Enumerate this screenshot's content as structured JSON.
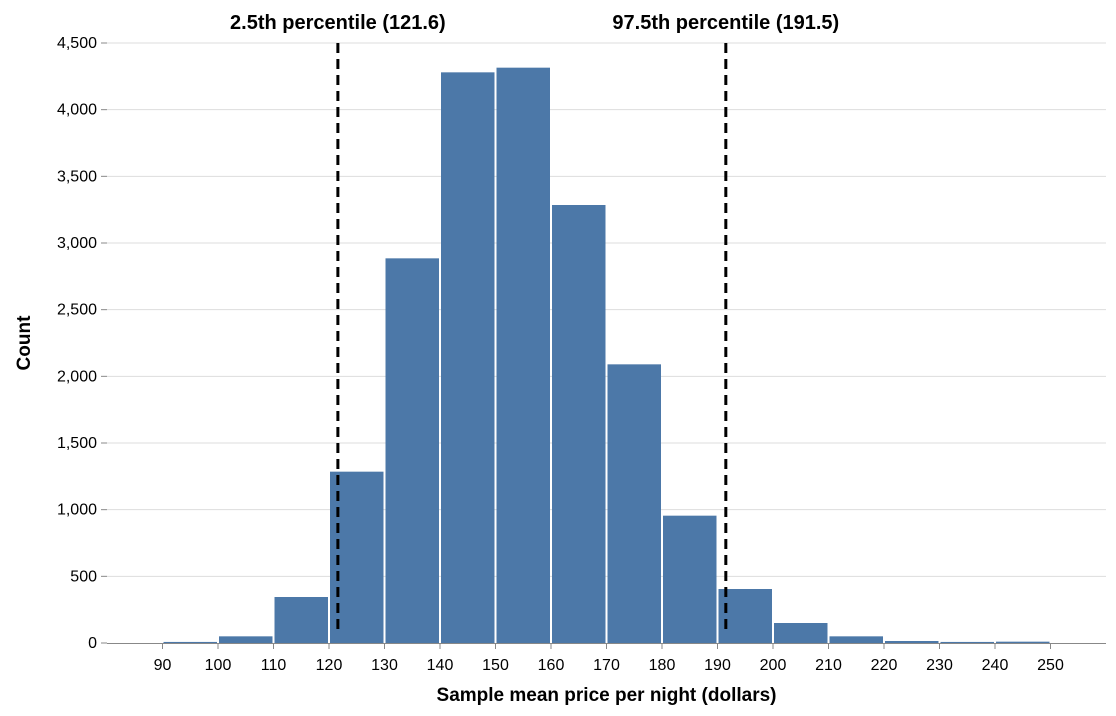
{
  "chart_data": {
    "type": "bar",
    "title": "",
    "xlabel": "Sample mean price per night (dollars)",
    "ylabel": "Count",
    "xlim": [
      80,
      260
    ],
    "ylim": [
      0,
      4500
    ],
    "grid": true,
    "bar_color": "#4c78a8",
    "bins": [
      {
        "x0": 90,
        "x1": 100,
        "count": 8
      },
      {
        "x0": 100,
        "x1": 110,
        "count": 50
      },
      {
        "x0": 110,
        "x1": 120,
        "count": 345
      },
      {
        "x0": 120,
        "x1": 130,
        "count": 1285
      },
      {
        "x0": 130,
        "x1": 140,
        "count": 2885
      },
      {
        "x0": 140,
        "x1": 150,
        "count": 4280
      },
      {
        "x0": 150,
        "x1": 160,
        "count": 4315
      },
      {
        "x0": 160,
        "x1": 170,
        "count": 3285
      },
      {
        "x0": 170,
        "x1": 180,
        "count": 2090
      },
      {
        "x0": 180,
        "x1": 190,
        "count": 955
      },
      {
        "x0": 190,
        "x1": 200,
        "count": 405
      },
      {
        "x0": 200,
        "x1": 210,
        "count": 150
      },
      {
        "x0": 210,
        "x1": 220,
        "count": 50
      },
      {
        "x0": 220,
        "x1": 230,
        "count": 15
      },
      {
        "x0": 230,
        "x1": 240,
        "count": 8
      },
      {
        "x0": 240,
        "x1": 250,
        "count": 10
      }
    ],
    "x_ticks": [
      90,
      100,
      110,
      120,
      130,
      140,
      150,
      160,
      170,
      180,
      190,
      200,
      210,
      220,
      230,
      240,
      250
    ],
    "x_tick_labels": [
      "90",
      "100",
      "110",
      "120",
      "130",
      "140",
      "150",
      "160",
      "170",
      "180",
      "190",
      "200",
      "210",
      "220",
      "230",
      "240",
      "250"
    ],
    "y_ticks": [
      0,
      500,
      1000,
      1500,
      2000,
      2500,
      3000,
      3500,
      4000,
      4500
    ],
    "y_tick_labels": [
      "0",
      "500",
      "1,000",
      "1,500",
      "2,000",
      "2,500",
      "3,000",
      "3,500",
      "4,000",
      "4,500"
    ],
    "reference_lines": [
      {
        "x": 121.6,
        "label": "2.5th percentile (121.6)",
        "style": "dashed"
      },
      {
        "x": 191.5,
        "label": "97.5th percentile (191.5)",
        "style": "dashed"
      }
    ]
  }
}
